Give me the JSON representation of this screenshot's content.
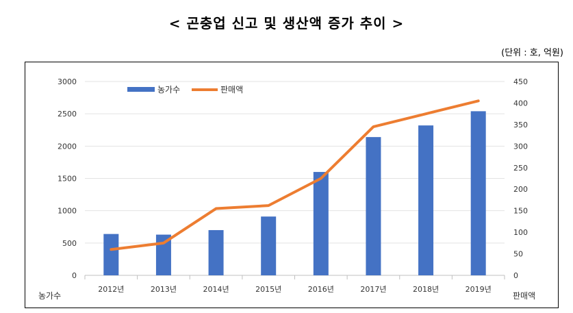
{
  "title": "< 곤충업 신고 및 생산액 증가 추이 >",
  "unit_note": "(단위 : 호, 억원)",
  "chart_data": {
    "type": "bar",
    "categories": [
      "2012년",
      "2013년",
      "2014년",
      "2015년",
      "2016년",
      "2017년",
      "2018년",
      "2019년"
    ],
    "series": [
      {
        "name": "농가수",
        "type": "bar",
        "axis": "left",
        "color": "#4472C4",
        "values": [
          640,
          630,
          700,
          910,
          1600,
          2140,
          2320,
          2540
        ]
      },
      {
        "name": "판매액",
        "type": "line",
        "axis": "right",
        "color": "#ED7D31",
        "values": [
          60,
          75,
          155,
          162,
          225,
          345,
          375,
          405
        ]
      }
    ],
    "y_left": {
      "label": "농가수",
      "min": 0,
      "max": 3000,
      "ticks": [
        0,
        500,
        1000,
        1500,
        2000,
        2500,
        3000
      ]
    },
    "y_right": {
      "label": "판매액",
      "min": 0,
      "max": 450,
      "ticks": [
        0,
        50,
        100,
        150,
        200,
        250,
        300,
        350,
        400,
        450
      ]
    },
    "grid": true,
    "legend": "top-left"
  }
}
